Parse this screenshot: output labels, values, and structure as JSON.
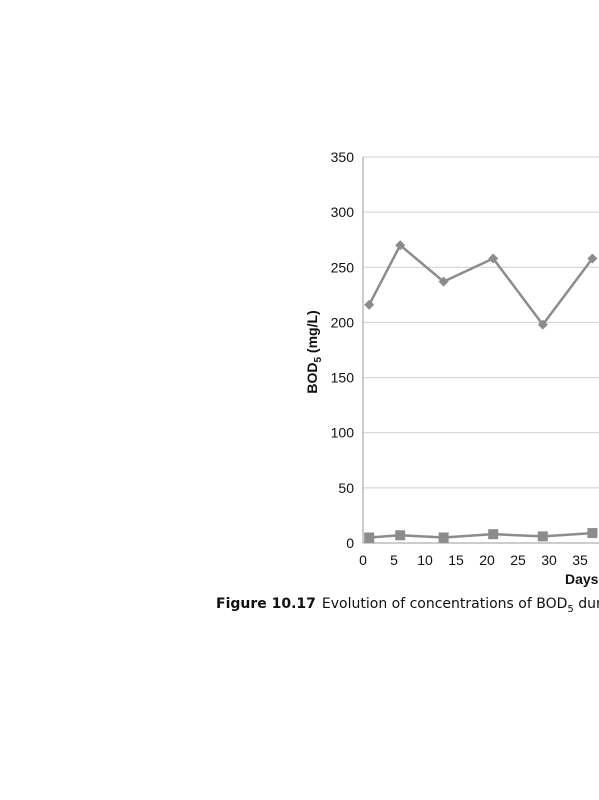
{
  "chart_data": {
    "type": "line",
    "ylabel": {
      "main": "BOD",
      "sub": "5",
      "rest": " (mg/L)"
    },
    "xlabel": "Days",
    "ylim": [
      0,
      350
    ],
    "yticks": [
      0,
      50,
      100,
      150,
      200,
      250,
      300,
      350
    ],
    "xticks": [
      0,
      5,
      10,
      15,
      20,
      25,
      30,
      35
    ],
    "grid": true,
    "colors": {
      "series": "#8c8c8c",
      "grid": "#cfcfcf",
      "axis": "#999999"
    },
    "series": [
      {
        "marker": "diamond",
        "x": [
          1,
          6,
          13,
          21,
          29,
          37
        ],
        "y": [
          216,
          270,
          237,
          258,
          198,
          258
        ]
      },
      {
        "marker": "square",
        "x": [
          1,
          6,
          13,
          21,
          29,
          37
        ],
        "y": [
          5,
          7,
          5,
          8,
          6,
          9
        ]
      }
    ]
  },
  "caption": {
    "label": "Figure 10.17",
    "text_main": "Evolution of concentrations of BOD",
    "text_sub": "5",
    "text_rest": " duri"
  }
}
